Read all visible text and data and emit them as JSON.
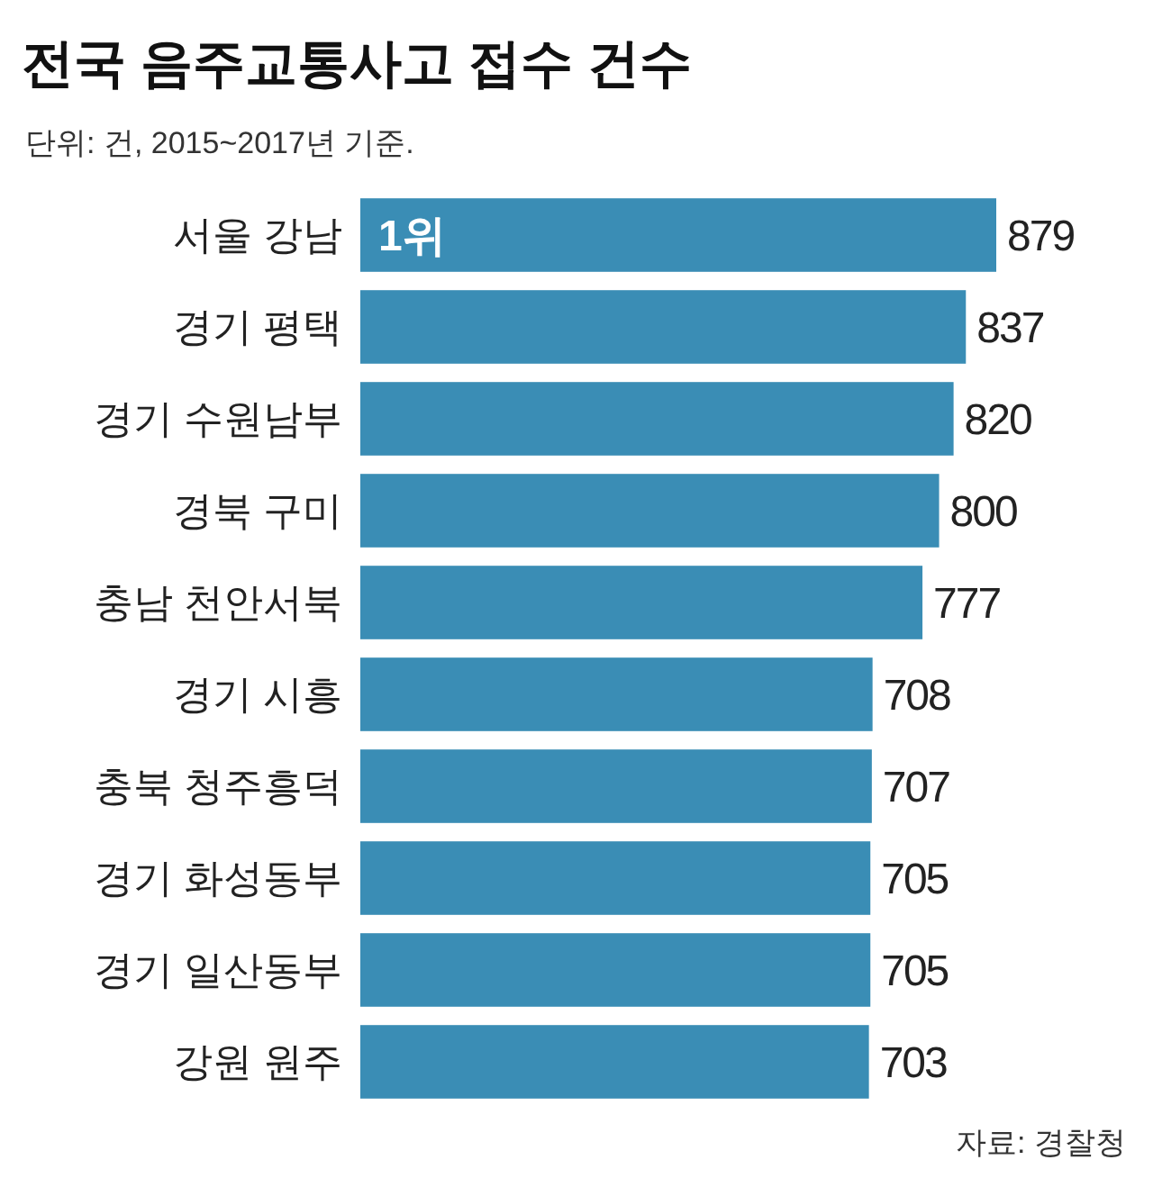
{
  "chart_data": {
    "type": "bar",
    "orientation": "horizontal",
    "title": "전국 음주교통사고 접수 건수",
    "subtitle": "단위: 건, 2015~2017년  기준.",
    "categories": [
      "서울 강남",
      "경기 평택",
      "경기 수원남부",
      "경북 구미",
      "충남 천안서북",
      "경기 시흥",
      "충북 청주흥덕",
      "경기 화성동부",
      "경기 일산동부",
      "강원 원주"
    ],
    "values": [
      879,
      837,
      820,
      800,
      777,
      708,
      707,
      705,
      705,
      703
    ],
    "color": "#3a8db5",
    "data_labels": true,
    "annotations": [
      {
        "text": "1위",
        "y": "서울 강남"
      },
      "자료: 경찰청"
    ]
  }
}
